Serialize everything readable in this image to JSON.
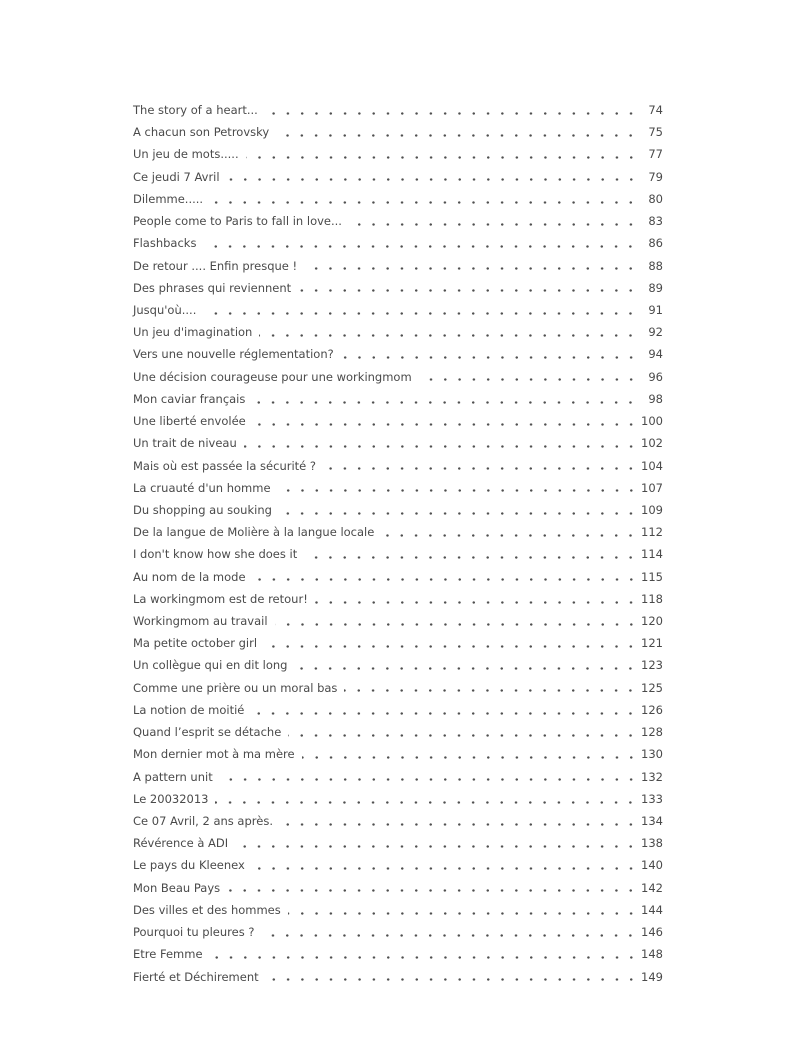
{
  "document": {
    "text_color": "#4a4a4a",
    "entries": [
      {
        "title": "The story of a heart...",
        "page": "74"
      },
      {
        "title": "A chacun son Petrovsky",
        "page": "75"
      },
      {
        "title": "Un jeu de mots.....",
        "page": "77"
      },
      {
        "title": "Ce jeudi 7 Avril",
        "page": "79"
      },
      {
        "title": "Dilemme.....",
        "page": "80"
      },
      {
        "title": "People come to Paris to fall in love...",
        "page": "83"
      },
      {
        "title": "Flashbacks",
        "page": "86"
      },
      {
        "title": "De retour .... Enfin presque !",
        "page": "88"
      },
      {
        "title": "Des phrases qui reviennent",
        "page": "89"
      },
      {
        "title": "Jusqu'où....",
        "page": "91"
      },
      {
        "title": "Un jeu d'imagination",
        "page": "92"
      },
      {
        "title": "Vers une nouvelle réglementation?",
        "page": "94"
      },
      {
        "title": "Une décision courageuse pour une workingmom",
        "page": "96"
      },
      {
        "title": "Mon caviar français",
        "page": "98"
      },
      {
        "title": "Une liberté envolée",
        "page": "100"
      },
      {
        "title": "Un trait de niveau",
        "page": "102"
      },
      {
        "title": "Mais où est passée la sécurité ?",
        "page": "104"
      },
      {
        "title": "La cruauté d'un homme",
        "page": "107"
      },
      {
        "title": "Du shopping au souking",
        "page": "109"
      },
      {
        "title": "De la langue de Molière à la langue locale",
        "page": "112"
      },
      {
        "title": "I don't know how she does it",
        "page": "114"
      },
      {
        "title": "Au nom de la mode",
        "page": "115"
      },
      {
        "title": "La workingmom est de retour!",
        "page": "118"
      },
      {
        "title": "Workingmom au travail",
        "page": "120"
      },
      {
        "title": "Ma petite october girl",
        "page": "121"
      },
      {
        "title": "Un collègue qui en dit long",
        "page": "123"
      },
      {
        "title": "Comme une prière ou un moral bas",
        "page": "125"
      },
      {
        "title": "La notion de moitié",
        "page": "126"
      },
      {
        "title": "Quand l’esprit se détache",
        "page": "128"
      },
      {
        "title": "Mon dernier mot à ma mère",
        "page": "130"
      },
      {
        "title": "A pattern unit",
        "page": "132"
      },
      {
        "title": "Le 20032013",
        "page": "133"
      },
      {
        "title": "Ce 07 Avril, 2 ans après.",
        "page": "134"
      },
      {
        "title": "Révérence à ADI",
        "page": "138"
      },
      {
        "title": "Le pays du Kleenex",
        "page": "140"
      },
      {
        "title": "Mon Beau Pays",
        "page": "142"
      },
      {
        "title": "Des villes et des hommes",
        "page": "144"
      },
      {
        "title": "Pourquoi tu pleures ?",
        "page": "146"
      },
      {
        "title": "Etre Femme",
        "page": "148"
      },
      {
        "title": "Fierté et Déchirement",
        "page": "149"
      }
    ]
  }
}
